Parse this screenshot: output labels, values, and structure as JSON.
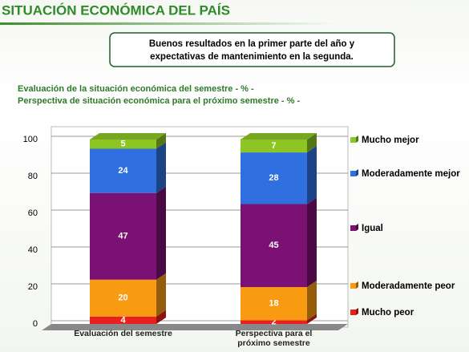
{
  "slide": {
    "title": "SITUACIÓN ECONÓMICA DEL PAÍS",
    "callout": [
      "Buenos resultados en la primer parte del año y",
      "expectativas de mantenimiento en la segunda."
    ]
  },
  "chart_data": {
    "type": "stacked-bar-3d",
    "title": [
      "Evaluación de la situación económica del semestre - % -",
      "Perspectiva de situación económica para el próximo semestre - % -"
    ],
    "categories": [
      "Evaluación del semestre",
      "Perspectiva para el próximo semestre"
    ],
    "series": [
      {
        "name": "Mucho peor",
        "color": "#e8211c",
        "values": [
          4,
          2
        ]
      },
      {
        "name": "Moderadamente peor",
        "color": "#f99a13",
        "values": [
          20,
          18
        ]
      },
      {
        "name": "Igual",
        "color": "#7b1172",
        "values": [
          47,
          45
        ]
      },
      {
        "name": "Moderadamente mejor",
        "color": "#2f6fe0",
        "values": [
          24,
          28
        ]
      },
      {
        "name": "Mucho mejor",
        "color": "#8cc524",
        "values": [
          5,
          7
        ]
      }
    ],
    "ylim": [
      0,
      100
    ],
    "yticks": [
      0,
      20,
      40,
      60,
      80,
      100
    ],
    "grid": true,
    "legend": "right"
  }
}
